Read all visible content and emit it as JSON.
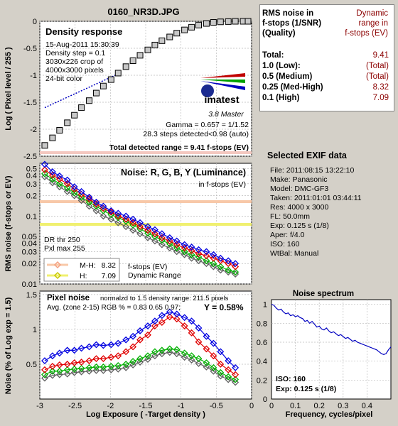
{
  "file_title": "0160_NR3D.JPG",
  "density": {
    "title": "Density response",
    "info": [
      "15-Aug-2011 15:30:39",
      "Density step = 0.1",
      "3030x226 crop of",
      "4000x3000 pixels",
      "24-bit color"
    ],
    "logo_text": "imatest",
    "logo_sub": "3.8  Master",
    "gamma": "Gamma = 0.657 = 1/1.52",
    "steps": "28.3 steps detected<0.98 (auto)",
    "total_range": "Total detected range = 9.41 f-stops (EV)",
    "ylabel": "Log ( Pixel level / 255 )",
    "yticks": [
      "0",
      "-0.5",
      "-1",
      "-1.5",
      "-2",
      "-2.5"
    ]
  },
  "noise": {
    "title": "Noise: R, G, B, Y (Luminance)",
    "subtitle": "in f-stops (EV)",
    "dr_thr": "DR thr 250",
    "pxl_max": "Pxl max 255",
    "ylabel": "RMS noise (f-stops or EV)",
    "yticks": [
      "0.5",
      "0.4",
      "0.3",
      "0.2",
      "0.1",
      "0.05",
      "0.04",
      "0.03",
      "0.02",
      "0.01"
    ],
    "legend": [
      {
        "label": "M-H:",
        "value": "8.32",
        "color": "#f8c8a8",
        "marker": "#f4a080"
      },
      {
        "label": "H:",
        "value": "7.09",
        "color": "#f0f070",
        "marker": "#e0e000"
      }
    ],
    "legend_note": [
      "f-stops (EV)",
      "Dynamic Range"
    ]
  },
  "pixel_noise": {
    "title": "Pixel noise",
    "norm": "normalzd to 1.5 density range: 211.5 pixels",
    "avg": "Avg. (zone 2-15) RGB % = 0.83  0.65  0.97;",
    "y_value": "Y = 0.58%",
    "ylabel": "Noise (% of Log exp = 1.5)",
    "yticks": [
      "1.5",
      "1",
      "0.5"
    ],
    "xlabel": "Log Exposure ( -Target density )",
    "xticks": [
      "-3",
      "-2.5",
      "-2",
      "-1.5",
      "-1",
      "-0.5",
      "0"
    ]
  },
  "spectrum": {
    "title": "Noise spectrum",
    "iso": "ISO:   160",
    "exp": "Exp:   0.125 s   (1/8)",
    "xlabel": "Frequency, cycles/pixel",
    "yticks": [
      "1",
      "0.8",
      "0.6",
      "0.4",
      "0.2",
      "0"
    ],
    "xticks": [
      "0",
      "0.1",
      "0.2",
      "0.3",
      "0.4"
    ]
  },
  "table": {
    "head_left": [
      "RMS noise in",
      "f-stops (1/SNR)",
      "(Quality)"
    ],
    "head_right": [
      "Dynamic",
      "range in",
      "f-stops (EV)"
    ],
    "rows": [
      {
        "label": "Total:",
        "value": "9.41"
      },
      {
        "label": "1.0  (Low):",
        "value": "(Total)"
      },
      {
        "label": "0.5  (Medium)",
        "value": "(Total)"
      },
      {
        "label": "0.25 (Med-High)",
        "value": "8.32"
      },
      {
        "label": "0.1   (High)",
        "value": "7.09"
      }
    ]
  },
  "exif": {
    "title": "Selected EXIF data",
    "rows": [
      "File:  2011:08:15 13:22:10",
      "Make:  Panasonic",
      "Model: DMC-GF3",
      "Taken: 2011:01:01 03:44:11",
      "Res:   4000 x 3000",
      "FL:  50.0mm",
      "Exp:   0.125 s   (1/8)",
      "Aper:  f/4.0",
      "ISO:   160",
      "WtBal: Manual"
    ]
  },
  "chart_data": [
    {
      "type": "scatter",
      "title": "Density response",
      "xlabel": "",
      "ylabel": "Log ( Pixel level / 255 )",
      "xlim": [
        -3,
        0
      ],
      "ylim": [
        -2.5,
        0
      ],
      "series": [
        {
          "x": [
            -2.93,
            -2.82,
            -2.72,
            -2.61,
            -2.51,
            -2.41,
            -2.3,
            -2.2,
            -2.1,
            -1.99,
            -1.89,
            -1.78,
            -1.68,
            -1.58,
            -1.47,
            -1.37,
            -1.27,
            -1.16,
            -1.06,
            -0.95,
            -0.85,
            -0.75,
            -0.64,
            -0.54,
            -0.44,
            -0.33,
            -0.23,
            -0.12,
            -0.05
          ],
          "values": [
            -2.3,
            -2.16,
            -2.02,
            -1.88,
            -1.74,
            -1.6,
            -1.47,
            -1.33,
            -1.2,
            -1.08,
            -0.96,
            -0.84,
            -0.73,
            -0.63,
            -0.53,
            -0.44,
            -0.36,
            -0.29,
            -0.22,
            -0.16,
            -0.11,
            -0.07,
            -0.04,
            -0.02,
            -0.01,
            -0.005,
            0,
            0,
            0
          ]
        }
      ],
      "fit_line": {
        "x": [
          -2.93,
          -1.85
        ],
        "values": [
          -1.6,
          -0.95
        ]
      }
    },
    {
      "type": "line",
      "title": "Noise: R, G, B, Y (Luminance)",
      "ylabel": "RMS noise (f-stops or EV)",
      "xlim": [
        -3,
        0
      ],
      "ylim": [
        0.01,
        0.6
      ],
      "scale": "log",
      "x": [
        -2.93,
        -2.82,
        -2.72,
        -2.61,
        -2.51,
        -2.41,
        -2.3,
        -2.2,
        -2.1,
        -1.99,
        -1.89,
        -1.78,
        -1.68,
        -1.58,
        -1.47,
        -1.37,
        -1.27,
        -1.16,
        -1.06,
        -0.95,
        -0.85,
        -0.75,
        -0.64,
        -0.54,
        -0.44,
        -0.33,
        -0.23
      ],
      "series": [
        {
          "color": "#0000e0",
          "values": [
            0.58,
            0.45,
            0.39,
            0.34,
            0.27,
            0.23,
            0.19,
            0.16,
            0.14,
            0.12,
            0.11,
            0.1,
            0.09,
            0.08,
            0.07,
            0.063,
            0.055,
            0.048,
            0.043,
            0.038,
            0.035,
            0.032,
            0.03,
            0.027,
            0.024,
            0.022,
            0.02
          ]
        },
        {
          "color": "#e00000",
          "values": [
            0.48,
            0.4,
            0.35,
            0.3,
            0.25,
            0.21,
            0.18,
            0.15,
            0.13,
            0.115,
            0.1,
            0.09,
            0.08,
            0.07,
            0.062,
            0.055,
            0.048,
            0.043,
            0.038,
            0.034,
            0.031,
            0.028,
            0.026,
            0.024,
            0.022,
            0.02,
            0.018
          ]
        },
        {
          "color": "#00b000",
          "values": [
            0.42,
            0.35,
            0.3,
            0.26,
            0.22,
            0.19,
            0.16,
            0.14,
            0.12,
            0.105,
            0.095,
            0.084,
            0.074,
            0.065,
            0.056,
            0.05,
            0.044,
            0.039,
            0.034,
            0.03,
            0.027,
            0.025,
            0.022,
            0.02,
            0.018,
            0.016,
            0.015
          ]
        },
        {
          "color": "#606060",
          "values": [
            0.38,
            0.31,
            0.27,
            0.23,
            0.2,
            0.17,
            0.14,
            0.12,
            0.1,
            0.09,
            0.08,
            0.07,
            0.062,
            0.055,
            0.048,
            0.043,
            0.038,
            0.034,
            0.03,
            0.027,
            0.024,
            0.022,
            0.02,
            0.018,
            0.016,
            0.015,
            0.014
          ]
        }
      ]
    },
    {
      "type": "line",
      "title": "Pixel noise",
      "xlabel": "Log Exposure ( -Target density )",
      "ylabel": "Noise (% of Log exp = 1.5)",
      "xlim": [
        -3,
        0
      ],
      "ylim": [
        0,
        1.55
      ],
      "x": [
        -2.93,
        -2.82,
        -2.72,
        -2.61,
        -2.51,
        -2.41,
        -2.3,
        -2.2,
        -2.1,
        -1.99,
        -1.89,
        -1.78,
        -1.68,
        -1.58,
        -1.47,
        -1.37,
        -1.27,
        -1.16,
        -1.06,
        -0.95,
        -0.85,
        -0.75,
        -0.64,
        -0.54,
        -0.44,
        -0.33,
        -0.23
      ],
      "series": [
        {
          "color": "#0000e0",
          "values": [
            0.55,
            0.62,
            0.66,
            0.7,
            0.7,
            0.73,
            0.75,
            0.78,
            0.77,
            0.78,
            0.8,
            0.85,
            0.9,
            0.98,
            1.05,
            1.12,
            1.2,
            1.25,
            1.22,
            1.17,
            1.12,
            1.02,
            0.9,
            0.8,
            0.68,
            0.55,
            0.45
          ]
        },
        {
          "color": "#e00000",
          "values": [
            0.42,
            0.47,
            0.49,
            0.5,
            0.52,
            0.53,
            0.55,
            0.58,
            0.58,
            0.6,
            0.62,
            0.68,
            0.75,
            0.85,
            0.92,
            1.05,
            1.1,
            1.18,
            1.15,
            1.05,
            0.95,
            0.82,
            0.72,
            0.62,
            0.5,
            0.42,
            0.35
          ]
        },
        {
          "color": "#00b000",
          "values": [
            0.35,
            0.4,
            0.4,
            0.42,
            0.43,
            0.44,
            0.45,
            0.46,
            0.46,
            0.47,
            0.48,
            0.5,
            0.54,
            0.58,
            0.62,
            0.68,
            0.7,
            0.72,
            0.71,
            0.66,
            0.62,
            0.58,
            0.52,
            0.45,
            0.38,
            0.32,
            0.28
          ]
        },
        {
          "color": "#606060",
          "values": [
            0.3,
            0.34,
            0.35,
            0.36,
            0.38,
            0.39,
            0.4,
            0.41,
            0.41,
            0.42,
            0.43,
            0.45,
            0.49,
            0.53,
            0.57,
            0.62,
            0.65,
            0.67,
            0.65,
            0.6,
            0.56,
            0.51,
            0.46,
            0.4,
            0.33,
            0.28,
            0.24
          ]
        }
      ]
    },
    {
      "type": "line",
      "title": "Noise spectrum",
      "xlabel": "Frequency, cycles/pixel",
      "xlim": [
        0,
        0.5
      ],
      "ylim": [
        0,
        1.05
      ],
      "x": [
        0,
        0.01,
        0.02,
        0.03,
        0.04,
        0.05,
        0.06,
        0.07,
        0.08,
        0.09,
        0.1,
        0.11,
        0.12,
        0.13,
        0.14,
        0.15,
        0.16,
        0.17,
        0.18,
        0.19,
        0.2,
        0.21,
        0.22,
        0.23,
        0.24,
        0.25,
        0.26,
        0.27,
        0.28,
        0.29,
        0.3,
        0.31,
        0.32,
        0.33,
        0.34,
        0.35,
        0.36,
        0.37,
        0.38,
        0.39,
        0.4,
        0.41,
        0.42,
        0.43,
        0.44,
        0.45,
        0.46,
        0.47,
        0.48,
        0.49,
        0.5
      ],
      "series": [
        {
          "color": "#0000c0",
          "values": [
            1.0,
            0.99,
            0.96,
            0.94,
            0.95,
            0.92,
            0.9,
            0.91,
            0.88,
            0.89,
            0.87,
            0.88,
            0.86,
            0.85,
            0.82,
            0.83,
            0.8,
            0.82,
            0.79,
            0.76,
            0.77,
            0.74,
            0.73,
            0.75,
            0.72,
            0.7,
            0.71,
            0.69,
            0.67,
            0.68,
            0.66,
            0.64,
            0.65,
            0.63,
            0.61,
            0.62,
            0.6,
            0.59,
            0.58,
            0.57,
            0.56,
            0.55,
            0.54,
            0.53,
            0.52,
            0.5,
            0.48,
            0.47,
            0.48,
            0.52,
            0.55
          ]
        }
      ]
    }
  ]
}
